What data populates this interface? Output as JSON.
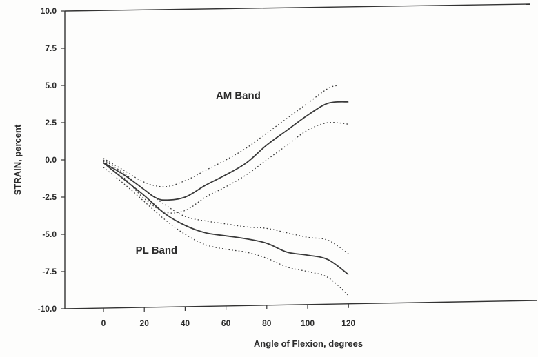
{
  "chart_data": {
    "type": "line",
    "title": "",
    "xlabel": "Angle of Flexion, degrees",
    "ylabel": "STRAIN, percent",
    "xlim": [
      -10,
      122
    ],
    "ylim": [
      -10.0,
      10.0
    ],
    "xticks": [
      0,
      20,
      40,
      60,
      80,
      100,
      120
    ],
    "yticks": [
      -10.0,
      -7.5,
      -5.0,
      -2.5,
      0.0,
      2.5,
      5.0,
      7.5,
      10.0
    ],
    "ytick_labels": [
      "-10.0",
      "-7.5",
      "-5.0",
      "-2.5",
      "0.0",
      "2.5",
      "5.0",
      "7.5",
      "10.0"
    ],
    "grid": false,
    "annotations": [
      {
        "text": "AM Band",
        "x": 66,
        "y": 4.1
      },
      {
        "text": "PL Band",
        "x": 26,
        "y": -6.3
      }
    ],
    "series": [
      {
        "style": "solid",
        "x": [
          0,
          10,
          20,
          25,
          30,
          40,
          50,
          60,
          70,
          80,
          90,
          100,
          110,
          120
        ],
        "y": [
          -0.2,
          -1.0,
          -2.0,
          -2.5,
          -2.7,
          -2.5,
          -1.7,
          -1.0,
          -0.2,
          1.0,
          2.0,
          3.0,
          3.8,
          3.9
        ]
      },
      {
        "style": "dotted",
        "x": [
          0,
          10,
          20,
          30,
          40,
          50,
          60,
          70,
          80,
          90,
          100,
          110,
          115
        ],
        "y": [
          0.1,
          -0.7,
          -1.5,
          -1.8,
          -1.4,
          -0.7,
          0.0,
          0.8,
          1.8,
          2.8,
          3.8,
          4.8,
          5.0
        ]
      },
      {
        "style": "dotted",
        "x": [
          0,
          10,
          20,
          30,
          40,
          50,
          60,
          70,
          80,
          90,
          100,
          110,
          120
        ],
        "y": [
          -0.1,
          -1.2,
          -2.6,
          -3.5,
          -3.4,
          -2.5,
          -1.8,
          -1.0,
          0.0,
          1.0,
          2.0,
          2.5,
          2.4
        ]
      },
      {
        "style": "solid",
        "x": [
          0,
          10,
          20,
          30,
          40,
          50,
          60,
          70,
          80,
          90,
          100,
          110,
          120
        ],
        "y": [
          -0.2,
          -1.3,
          -2.4,
          -3.6,
          -4.4,
          -4.9,
          -5.1,
          -5.3,
          -5.6,
          -6.2,
          -6.4,
          -6.7,
          -7.7
        ]
      },
      {
        "style": "dotted",
        "x": [
          0,
          10,
          20,
          30,
          40,
          50,
          60,
          70,
          80,
          90,
          100,
          110,
          120
        ],
        "y": [
          0.0,
          -0.9,
          -2.0,
          -3.0,
          -3.8,
          -4.1,
          -4.3,
          -4.5,
          -4.6,
          -4.9,
          -5.2,
          -5.4,
          -6.3
        ]
      },
      {
        "style": "dotted",
        "x": [
          0,
          10,
          20,
          30,
          40,
          50,
          60,
          70,
          80,
          90,
          100,
          110,
          120
        ],
        "y": [
          -0.5,
          -1.6,
          -2.8,
          -4.0,
          -5.0,
          -5.7,
          -6.0,
          -6.2,
          -6.6,
          -7.2,
          -7.5,
          -7.9,
          -9.1
        ]
      }
    ]
  }
}
